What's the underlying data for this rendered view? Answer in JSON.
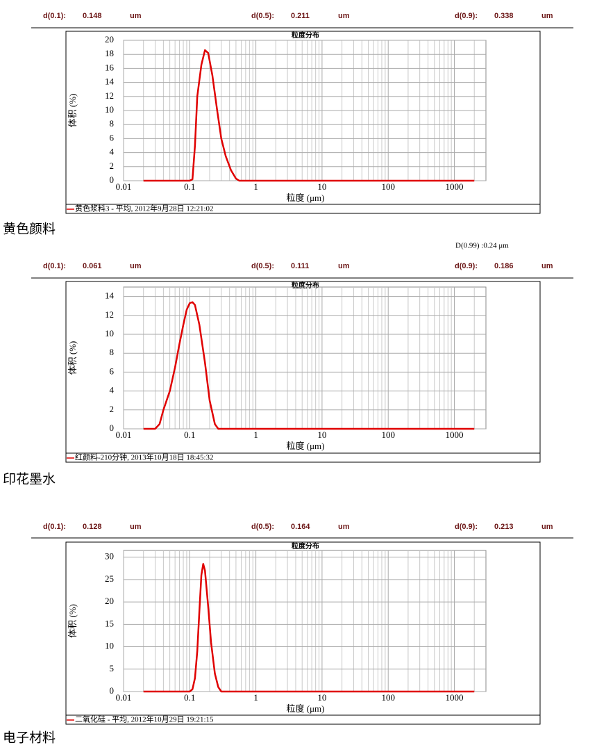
{
  "note": "D(0.99) :0.24 μm",
  "chart_data": [
    {
      "type": "line",
      "title": "粒度分布",
      "caption": "黄色颜料",
      "stats": [
        {
          "label": "d(0.1):",
          "value": 0.148,
          "unit": "um"
        },
        {
          "label": "d(0.5):",
          "value": 0.211,
          "unit": "um"
        },
        {
          "label": "d(0.9):",
          "value": 0.338,
          "unit": "um"
        }
      ],
      "xlabel": "粒度 (μm)",
      "ylabel": "体积 (%)",
      "xscale": "log",
      "grid": true,
      "xlim": [
        0.01,
        3000
      ],
      "xticks": [
        0.01,
        0.1,
        1,
        10,
        100,
        1000
      ],
      "ylim": [
        0,
        20
      ],
      "yticks": [
        0,
        2,
        4,
        6,
        8,
        10,
        12,
        14,
        16,
        18,
        20
      ],
      "x": [
        0.02,
        0.1,
        0.11,
        0.12,
        0.13,
        0.15,
        0.17,
        0.19,
        0.22,
        0.26,
        0.3,
        0.35,
        0.42,
        0.5,
        0.56,
        1,
        2000
      ],
      "series": [
        {
          "name": "黄色浆料3 - 平均, 2012年9月28日 12:21:02",
          "color": "#e00000",
          "values": [
            0,
            0,
            0.2,
            5,
            12,
            16.5,
            18.6,
            18.2,
            15,
            10,
            6,
            3.5,
            1.5,
            0.3,
            0,
            0,
            0
          ]
        }
      ]
    },
    {
      "type": "line",
      "title": "粒度分布",
      "caption": "印花墨水",
      "stats": [
        {
          "label": "d(0.1):",
          "value": 0.061,
          "unit": "um"
        },
        {
          "label": "d(0.5):",
          "value": 0.111,
          "unit": "um"
        },
        {
          "label": "d(0.9):",
          "value": 0.186,
          "unit": "um"
        }
      ],
      "xlabel": "粒度 (μm)",
      "ylabel": "体积 (%)",
      "xscale": "log",
      "grid": true,
      "xlim": [
        0.01,
        3000
      ],
      "xticks": [
        0.01,
        0.1,
        1,
        10,
        100,
        1000
      ],
      "ylim": [
        0,
        15
      ],
      "yticks": [
        0,
        2,
        4,
        6,
        8,
        10,
        12,
        14
      ],
      "x": [
        0.02,
        0.03,
        0.035,
        0.04,
        0.05,
        0.06,
        0.07,
        0.08,
        0.09,
        0.1,
        0.11,
        0.12,
        0.14,
        0.17,
        0.2,
        0.24,
        0.27,
        1,
        2000
      ],
      "series": [
        {
          "name": "红颜料-210分钟, 2013年10月18日 18:45:32",
          "color": "#e00000",
          "values": [
            0,
            0,
            0.5,
            2,
            4,
            6.5,
            9,
            11,
            12.6,
            13.3,
            13.4,
            13.1,
            11,
            7,
            3,
            0.5,
            0,
            0,
            0
          ]
        }
      ]
    },
    {
      "type": "line",
      "title": "粒度分布",
      "caption": "电子材料",
      "stats": [
        {
          "label": "d(0.1):",
          "value": 0.128,
          "unit": "um"
        },
        {
          "label": "d(0.5):",
          "value": 0.164,
          "unit": "um"
        },
        {
          "label": "d(0.9):",
          "value": 0.213,
          "unit": "um"
        }
      ],
      "xlabel": "粒度 (μm)",
      "ylabel": "体积 (%)",
      "xscale": "log",
      "grid": true,
      "xlim": [
        0.01,
        3000
      ],
      "xticks": [
        0.01,
        0.1,
        1,
        10,
        100,
        1000
      ],
      "ylim": [
        0,
        31.5
      ],
      "yticks": [
        0,
        5,
        10,
        15,
        20,
        25,
        30
      ],
      "x": [
        0.02,
        0.1,
        0.11,
        0.12,
        0.13,
        0.14,
        0.15,
        0.16,
        0.17,
        0.19,
        0.21,
        0.24,
        0.27,
        0.3,
        1,
        2000
      ],
      "series": [
        {
          "name": "二氧化硅 - 平均, 2012年10月29日 19:21:15",
          "color": "#e00000",
          "values": [
            0,
            0,
            0.5,
            3,
            9,
            18,
            26,
            28.5,
            27,
            19,
            11,
            4,
            1,
            0,
            0,
            0
          ]
        }
      ]
    }
  ]
}
